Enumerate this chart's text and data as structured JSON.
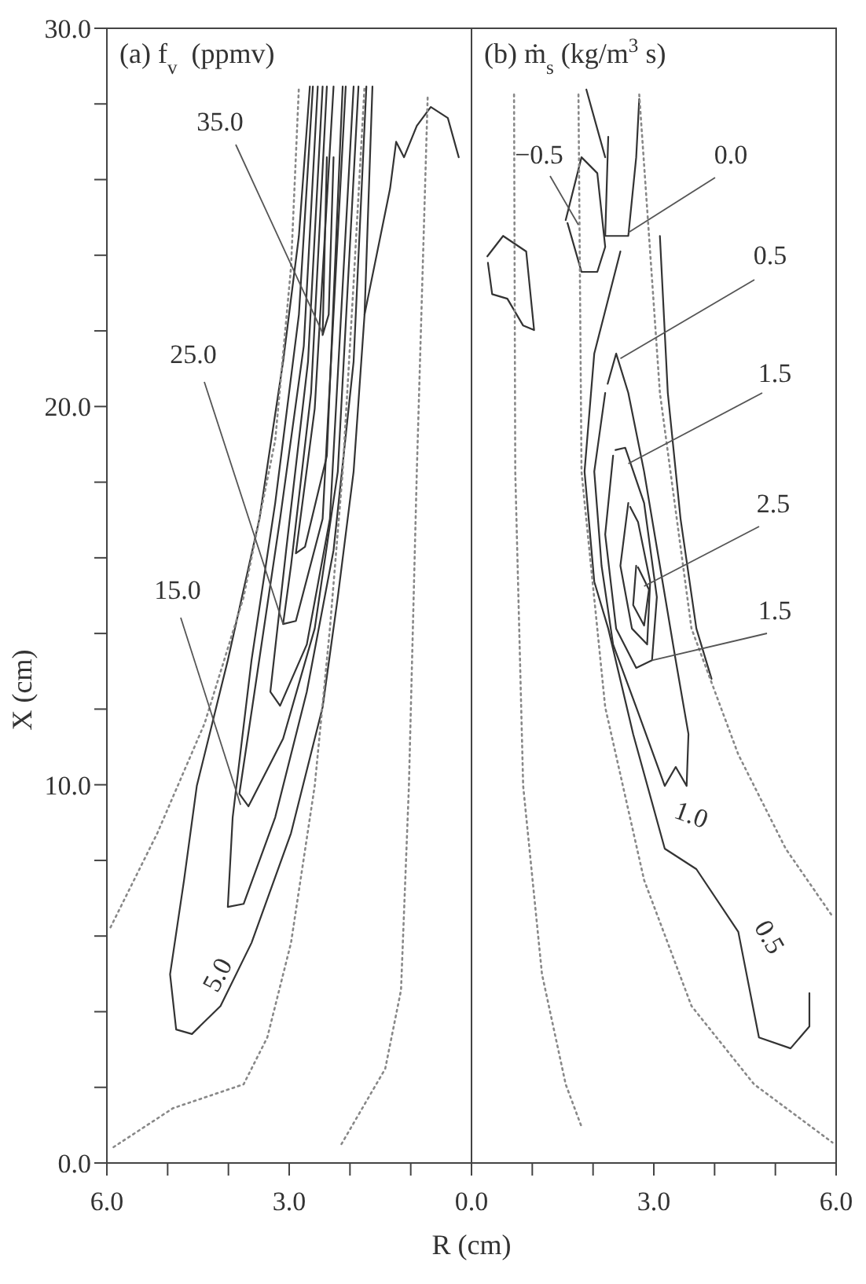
{
  "chart_data": [
    {
      "type": "line",
      "title": "(a) f$_{v}$  (ppmv)",
      "xlabel": "R (cm)",
      "ylabel": "X (cm)",
      "xlim": [
        6,
        0
      ],
      "ylim": [
        0,
        30
      ],
      "xticks": [
        {
          "value": 6,
          "label": "6.0"
        },
        {
          "value": 5,
          "label": null
        },
        {
          "value": 4,
          "label": null
        },
        {
          "value": 3,
          "label": "3.0"
        },
        {
          "value": 2,
          "label": null
        },
        {
          "value": 1,
          "label": null
        },
        {
          "value": 0,
          "label": null
        }
      ],
      "yticks": [
        {
          "value": 0,
          "label": "0.0"
        },
        {
          "value": 2,
          "label": null
        },
        {
          "value": 4,
          "label": null
        },
        {
          "value": 6,
          "label": null
        },
        {
          "value": 8,
          "label": null
        },
        {
          "value": 10,
          "label": "10.0"
        },
        {
          "value": 12,
          "label": null
        },
        {
          "value": 14,
          "label": null
        },
        {
          "value": 16,
          "label": null
        },
        {
          "value": 18,
          "label": null
        },
        {
          "value": 20,
          "label": "20.0"
        },
        {
          "value": 22,
          "label": null
        },
        {
          "value": 24,
          "label": null
        },
        {
          "value": 26,
          "label": null
        },
        {
          "value": 28,
          "label": null
        },
        {
          "value": 30,
          "label": "30.0"
        }
      ],
      "line_style": "solid",
      "series": [
        {
          "color": "#333333",
          "x": [
            2.66,
            2.84,
            3.1,
            3.49,
            4.01,
            4.52,
            4.73,
            4.96,
            4.86,
            4.6,
            4.13,
            3.62,
            2.97,
            2.45,
            2.2,
            1.94,
            1.76,
            1.63
          ],
          "values": [
            28.46,
            24.51,
            21.19,
            17.03,
            13.29,
            9.97,
            7.48,
            4.99,
            3.53,
            3.41,
            4.15,
            5.82,
            8.72,
            12.05,
            14.96,
            18.28,
            22.43,
            28.46
          ]
        },
        {
          "color": "#333333",
          "x": [
            2.61,
            2.84,
            3.23,
            3.62,
            3.93,
            4.01,
            3.75,
            3.23,
            2.71,
            2.27,
            1.94,
            1.73
          ],
          "values": [
            28.46,
            22.43,
            17.45,
            13.29,
            9.14,
            6.77,
            6.85,
            9.14,
            12.46,
            16.2,
            21.19,
            28.46
          ]
        },
        {
          "color": "#333333",
          "x": [
            2.53,
            2.76,
            3.15,
            3.57,
            3.82,
            3.67,
            3.1,
            2.58,
            2.2,
            1.86
          ],
          "values": [
            28.46,
            21.6,
            17.03,
            12.46,
            9.76,
            9.43,
            11.22,
            14.13,
            18.28,
            28.46
          ]
        },
        {
          "color": "#333333",
          "x": [
            2.45,
            2.69,
            3.05,
            3.31,
            3.15,
            2.71,
            2.33,
            1.94
          ],
          "values": [
            28.46,
            21.19,
            16.2,
            12.46,
            12.09,
            13.71,
            17.03,
            28.46
          ]
        },
        {
          "color": "#333333",
          "x": [
            2.38,
            2.64,
            2.97,
            3.1,
            2.89,
            2.45,
            2.07
          ],
          "values": [
            28.46,
            20.36,
            15.79,
            14.25,
            14.33,
            17.03,
            28.46
          ]
        },
        {
          "color": "#333333",
          "x": [
            2.27,
            2.58,
            2.89,
            2.74,
            2.38,
            2.12
          ],
          "values": [
            28.46,
            19.94,
            16.12,
            16.29,
            18.7,
            28.46
          ]
        },
        {
          "color": "#333333",
          "x": [
            2.38,
            2.45,
            2.35,
            2.27
          ],
          "values": [
            26.59,
            21.89,
            22.43,
            26.59
          ]
        },
        {
          "color": "#333333",
          "x": [
            1.76,
            1.34,
            1.24,
            1.11,
            0.9,
            0.67,
            0.39,
            0.21
          ],
          "values": [
            22.43,
            25.76,
            27.0,
            26.59,
            27.42,
            27.92,
            27.63,
            26.59
          ]
        },
        {
          "color": "#888888",
          "line_style": "dotted",
          "x": [
            5.94,
            5.17,
            4.39,
            3.75,
            3.23,
            2.97,
            2.84
          ],
          "values": [
            6.23,
            8.72,
            11.63,
            14.96,
            19.11,
            23.68,
            28.46
          ]
        },
        {
          "color": "#888888",
          "line_style": "dotted",
          "x": [
            5.89,
            4.91,
            3.75,
            3.36,
            2.97,
            2.58,
            2.33,
            2.12,
            1.94,
            1.76
          ],
          "values": [
            0.42,
            1.45,
            2.08,
            3.32,
            5.82,
            9.97,
            14.13,
            18.28,
            23.27,
            28.46
          ]
        },
        {
          "color": "#888888",
          "line_style": "dotted",
          "x": [
            2.14,
            1.42,
            1.16,
            1.03,
            0.9,
            0.72
          ],
          "values": [
            0.5,
            2.49,
            4.57,
            9.97,
            18.28,
            28.25
          ]
        }
      ],
      "annotations": [
        {
          "text": "35.0",
          "x": 2.45,
          "y": 21.94
        },
        {
          "text": "25.0",
          "x": 3.1,
          "y": 14.25
        },
        {
          "text": "15.0",
          "x": 3.8,
          "y": 9.47
        },
        "5.0"
      ]
    },
    {
      "type": "line",
      "title": "(b) ṁ$_{s}$ (kg/m$^{3}$ s)",
      "xlim": [
        0,
        6
      ],
      "ylim": [
        0,
        30
      ],
      "tick_labels": "x",
      "xticks": [
        {
          "value": 0,
          "label": "0.0"
        },
        {
          "value": 1,
          "label": null
        },
        {
          "value": 2,
          "label": null
        },
        {
          "value": 3,
          "label": "3.0"
        },
        {
          "value": 4,
          "label": null
        },
        {
          "value": 5,
          "label": null
        },
        {
          "value": 6,
          "label": "6.0"
        }
      ],
      "line_style": "solid",
      "series": [
        {
          "color": "#333333",
          "x": [
            2.45,
            2.02,
            1.86,
            2.02,
            2.25,
            2.66,
            3.18,
            3.7,
            4.39,
            4.73,
            5.25,
            5.56,
            5.56
          ],
          "values": [
            24.1,
            21.4,
            18.28,
            15.37,
            14.13,
            11.34,
            8.31,
            7.77,
            6.11,
            3.32,
            3.03,
            3.61,
            4.49
          ]
        },
        {
          "color": "#333333",
          "x": [
            3.1,
            3.23,
            3.44,
            3.7,
            3.95
          ],
          "values": [
            24.51,
            20.36,
            17.03,
            14.13,
            12.8
          ]
        },
        {
          "color": "#333333",
          "x": [
            2.2,
            2.02,
            2.14,
            2.33,
            2.71,
            3.18,
            3.36,
            3.54,
            3.57,
            3.36,
            3.1,
            2.84,
            2.58,
            2.38,
            2.24
          ],
          "values": [
            20.36,
            18.28,
            15.79,
            13.71,
            12.05,
            9.97,
            10.47,
            9.97,
            11.34,
            13.29,
            15.79,
            18.28,
            20.36,
            21.4,
            20.6
          ]
        },
        {
          "color": "#333333",
          "x": [
            2.33,
            2.2,
            2.38,
            2.71,
            2.97,
            3.05,
            2.84,
            2.53,
            2.37
          ],
          "values": [
            18.7,
            16.62,
            14.13,
            13.09,
            13.29,
            14.96,
            17.45,
            18.91,
            18.85
          ]
        },
        {
          "color": "#333333",
          "x": [
            2.58,
            2.45,
            2.64,
            2.89,
            2.94,
            2.74,
            2.61
          ],
          "values": [
            17.45,
            15.79,
            14.13,
            13.71,
            15.37,
            16.95,
            17.35
          ]
        },
        {
          "color": "#333333",
          "x": [
            2.71,
            2.66,
            2.84,
            2.92,
            2.74
          ],
          "values": [
            15.79,
            14.75,
            14.21,
            15.16,
            15.75
          ]
        },
        {
          "color": "#333333",
          "x": [
            2.25,
            2.2,
            2.58,
            2.71,
            2.76
          ],
          "values": [
            27.13,
            24.51,
            24.51,
            26.59,
            28.13
          ]
        },
        {
          "color": "#333333",
          "x": [
            1.55,
            1.81,
            2.07,
            2.2,
            2.07,
            1.81,
            1.58
          ],
          "values": [
            24.93,
            26.59,
            26.17,
            24.22,
            23.56,
            23.56,
            24.85
          ]
        },
        {
          "color": "#333333",
          "x": [
            0.26,
            0.52,
            0.9,
            1.03,
            0.85,
            0.59,
            0.34,
            0.27
          ],
          "values": [
            23.97,
            24.51,
            24.1,
            22.02,
            22.14,
            22.85,
            22.97,
            23.8
          ]
        },
        {
          "color": "#333333",
          "x": [
            1.89,
            2.2
          ],
          "values": [
            28.38,
            26.59
          ]
        },
        {
          "color": "#888888",
          "line_style": "dotted",
          "x": [
            0.7,
            0.72,
            0.85,
            1.16,
            1.55,
            1.81
          ],
          "values": [
            28.25,
            18.28,
            9.97,
            4.99,
            2.08,
            0.96
          ]
        },
        {
          "color": "#888888",
          "line_style": "dotted",
          "x": [
            1.76,
            1.81,
            2.2,
            2.84,
            3.62,
            4.65,
            5.94
          ],
          "values": [
            28.25,
            18.28,
            12.05,
            7.48,
            4.15,
            2.08,
            0.54
          ]
        },
        {
          "color": "#888888",
          "line_style": "dotted",
          "x": [
            2.76,
            3.1,
            3.62,
            4.39,
            5.17,
            5.94
          ],
          "values": [
            28.25,
            20.36,
            14.13,
            10.8,
            8.31,
            6.52
          ]
        }
      ],
      "annotations": [
        {
          "text": "−0.5",
          "x": 1.76,
          "y": 24.8
        },
        {
          "text": "0.0",
          "x": 2.58,
          "y": 24.6
        },
        {
          "text": "0.5",
          "x": 2.45,
          "y": 21.27
        },
        {
          "text": "1.5",
          "x": 2.58,
          "y": 18.49
        },
        {
          "text": "2.5",
          "x": 2.84,
          "y": 15.25
        },
        {
          "text": "1.5",
          "x": 2.97,
          "y": 13.29
        },
        "1.0",
        "0.5"
      ]
    }
  ]
}
